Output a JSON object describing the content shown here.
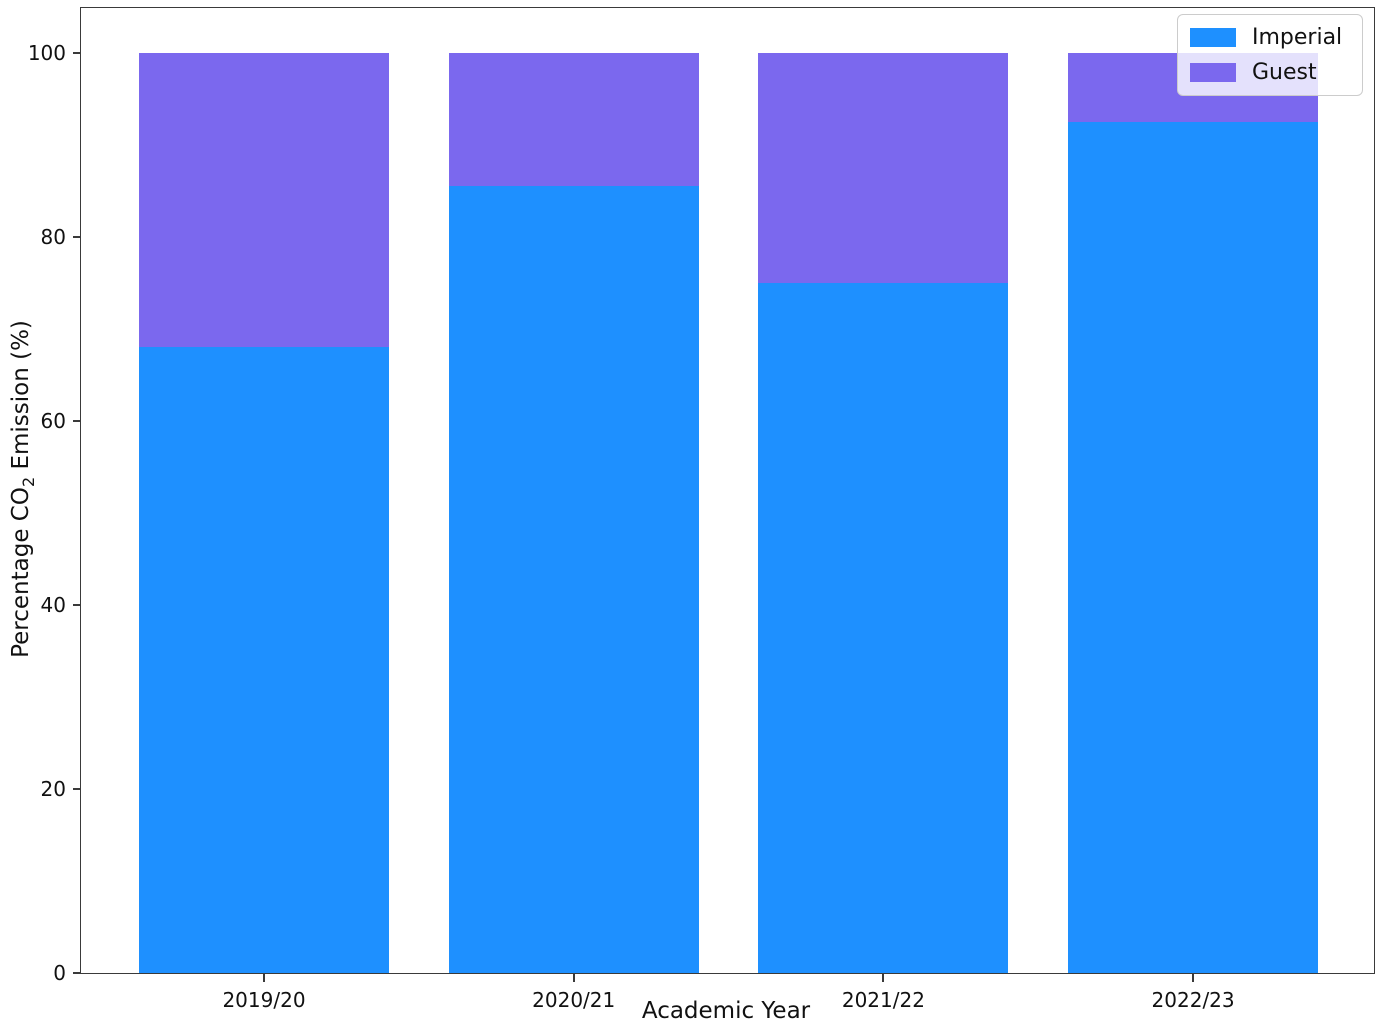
{
  "chart_data": {
    "type": "bar",
    "stacked": true,
    "title": "",
    "categories": [
      "2019/20",
      "2020/21",
      "2021/22",
      "2022/23"
    ],
    "series": [
      {
        "name": "Imperial",
        "color": "#1e90ff",
        "values": [
          68,
          85.5,
          75,
          92.5
        ]
      },
      {
        "name": "Guest",
        "color": "#7b68ee",
        "values": [
          32,
          14.5,
          25,
          7.5
        ]
      }
    ],
    "xlabel": "Academic Year",
    "ylabel": "Percentage CO2 Emission (%)",
    "ylim": [
      0,
      100
    ],
    "yticks": [
      0,
      20,
      40,
      60,
      80,
      100
    ],
    "grid": false,
    "legend_position": "upper right"
  },
  "axes": {
    "x_label": "Academic Year",
    "y_label_prefix": "Percentage CO",
    "y_label_sub": "2",
    "y_label_suffix": " Emission (%)"
  }
}
